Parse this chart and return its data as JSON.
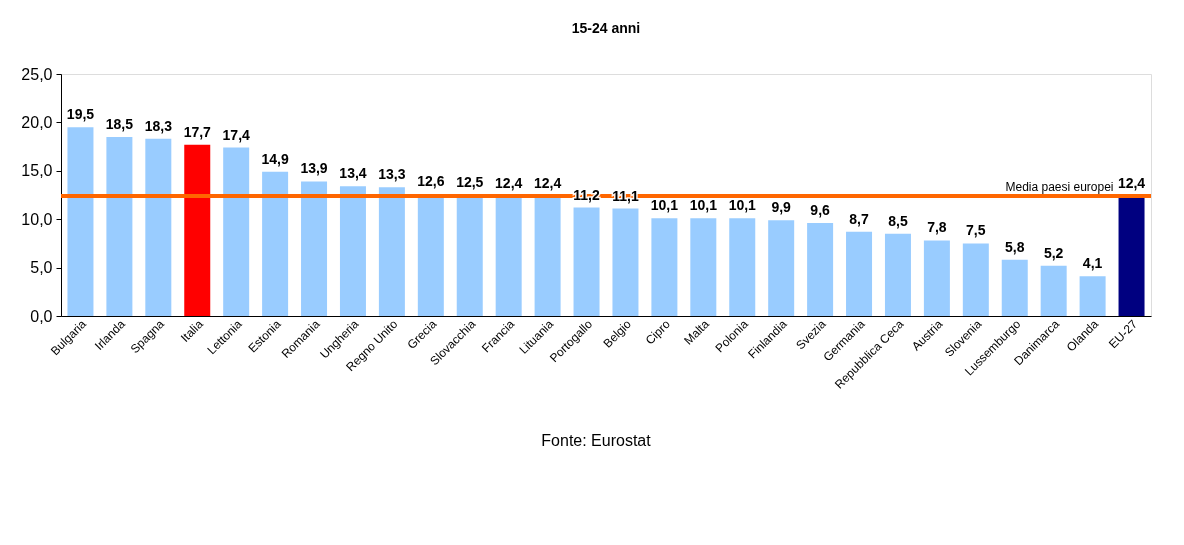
{
  "chart_data": {
    "type": "bar",
    "title": "15-24 anni",
    "categories": [
      "Bulgaria",
      "Irlanda",
      "Spagna",
      "Italia",
      "Lettonia",
      "Estonia",
      "Romania",
      "Ungheria",
      "Regno Unito",
      "Grecia",
      "Slovacchia",
      "Francia",
      "Lituania",
      "Portogallo",
      "Belgio",
      "Cipro",
      "Malta",
      "Polonia",
      "Finlandia",
      "Svezia",
      "Germania",
      "Repubblica Ceca",
      "Austria",
      "Slovenia",
      "Lussemburgo",
      "Danimarca",
      "Olanda",
      "EU-27"
    ],
    "values": [
      19.5,
      18.5,
      18.3,
      17.7,
      17.4,
      14.9,
      13.9,
      13.4,
      13.3,
      12.6,
      12.5,
      12.4,
      12.4,
      11.2,
      11.1,
      10.1,
      10.1,
      10.1,
      9.9,
      9.6,
      8.7,
      8.5,
      7.8,
      7.5,
      5.8,
      5.2,
      4.1,
      12.4
    ],
    "value_labels": [
      "19,5",
      "18,5",
      "18,3",
      "17,7",
      "17,4",
      "14,9",
      "13,9",
      "13,4",
      "13,3",
      "12,6",
      "12,5",
      "12,4",
      "12,4",
      "11,2",
      "11,1",
      "10,1",
      "10,1",
      "10,1",
      "9,9",
      "9,6",
      "8,7",
      "8,5",
      "7,8",
      "7,5",
      "5,8",
      "5,2",
      "4,1",
      "12,4"
    ],
    "colors": [
      "#99ccff",
      "#99ccff",
      "#99ccff",
      "#ff0000",
      "#99ccff",
      "#99ccff",
      "#99ccff",
      "#99ccff",
      "#99ccff",
      "#99ccff",
      "#99ccff",
      "#99ccff",
      "#99ccff",
      "#99ccff",
      "#99ccff",
      "#99ccff",
      "#99ccff",
      "#99ccff",
      "#99ccff",
      "#99ccff",
      "#99ccff",
      "#99ccff",
      "#99ccff",
      "#99ccff",
      "#99ccff",
      "#99ccff",
      "#99ccff",
      "#000080"
    ],
    "ylim": [
      0,
      25
    ],
    "yticks": [
      {
        "value": 0,
        "label": "0,0"
      },
      {
        "value": 5,
        "label": "5,0"
      },
      {
        "value": 10,
        "label": "10,0"
      },
      {
        "value": 15,
        "label": "15,0"
      },
      {
        "value": 20,
        "label": "20,0"
      },
      {
        "value": 25,
        "label": "25,0"
      }
    ],
    "ref_lines": [
      {
        "axis": "y",
        "value": 12.4,
        "label": "Media paesi europei",
        "color": "#ff6600"
      }
    ],
    "annotations": [
      "Fonte: Eurostat"
    ],
    "grid": false
  }
}
